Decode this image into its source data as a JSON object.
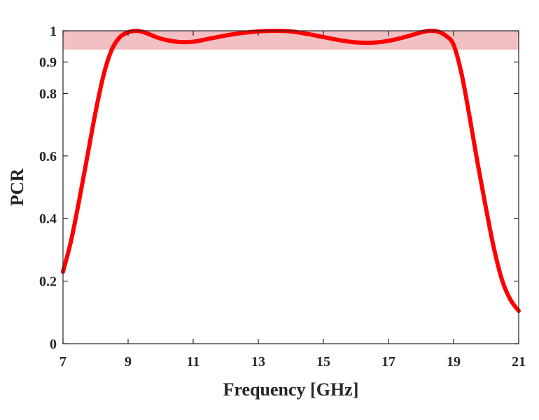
{
  "chart_data": {
    "type": "line",
    "title": "",
    "xlabel": "Frequency [GHz]",
    "ylabel": "PCR",
    "xlim": [
      7,
      21
    ],
    "ylim": [
      0,
      1
    ],
    "x_ticks": [
      7,
      9,
      11,
      13,
      15,
      17,
      19,
      21
    ],
    "x_tick_labels": [
      "7",
      "9",
      "11",
      "13",
      "15",
      "17",
      "19",
      "21"
    ],
    "y_ticks": [
      0,
      0.2,
      0.4,
      0.6,
      0.8,
      0.9,
      1
    ],
    "y_tick_labels": [
      "0",
      "0.2",
      "0.4",
      "0.6",
      "0.8",
      "0.9",
      "1"
    ],
    "grid": false,
    "band": {
      "y_from": 0.94,
      "y_to": 1.0,
      "color": "#f2c0c2"
    },
    "series": [
      {
        "color": "#ff0000",
        "x": [
          7.0,
          7.25,
          7.5,
          7.75,
          8.0,
          8.25,
          8.5,
          8.75,
          9.0,
          9.25,
          9.5,
          10.0,
          10.5,
          11.0,
          11.5,
          12.0,
          12.5,
          13.0,
          13.5,
          14.0,
          14.5,
          15.0,
          15.5,
          16.0,
          16.5,
          17.0,
          17.5,
          18.0,
          18.25,
          18.5,
          18.75,
          19.0,
          19.25,
          19.5,
          19.75,
          20.0,
          20.25,
          20.5,
          20.75,
          21.0
        ],
        "y": [
          0.23,
          0.33,
          0.46,
          0.6,
          0.74,
          0.86,
          0.94,
          0.98,
          0.995,
          1.0,
          0.995,
          0.975,
          0.965,
          0.965,
          0.975,
          0.985,
          0.993,
          0.998,
          1.0,
          0.998,
          0.99,
          0.98,
          0.97,
          0.963,
          0.962,
          0.968,
          0.98,
          0.995,
          1.0,
          0.998,
          0.985,
          0.955,
          0.86,
          0.72,
          0.57,
          0.43,
          0.3,
          0.2,
          0.14,
          0.105
        ]
      }
    ]
  }
}
